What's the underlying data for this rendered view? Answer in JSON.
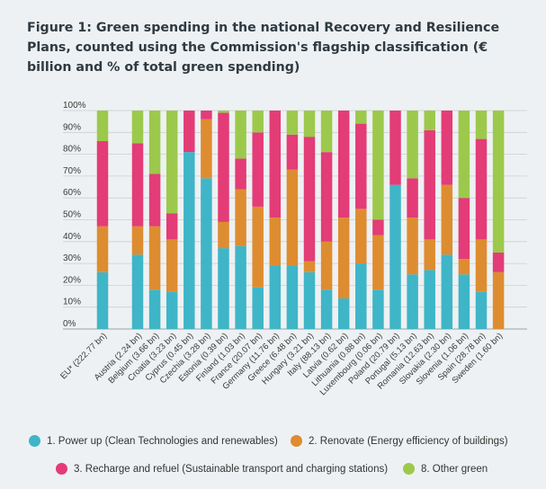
{
  "title": "Figure 1: Green spending in the national Recovery and Resilience Plans, counted using the Commission's flagship classification (€ billion and % of total green spending)",
  "colors": {
    "power_up": "#3fb5c8",
    "renovate": "#de8c30",
    "recharge": "#e33c77",
    "other_green": "#9cc94b"
  },
  "legend": [
    {
      "label": "1. Power up (Clean Technologies and renewables)"
    },
    {
      "label": "2. Renovate (Energy efficiency of buildings)"
    },
    {
      "label": "3. Recharge and refuel (Sustainable transport and charging stations)"
    },
    {
      "label": "8. Other green"
    }
  ],
  "chart_data": {
    "type": "bar",
    "stacked": true,
    "title": "Figure 1: Green spending in the national Recovery and Resilience Plans, counted using the Commission's flagship classification (€ billion and % of total green spending)",
    "xlabel": "",
    "ylabel": "",
    "ylim": [
      0,
      100
    ],
    "yticks": [
      "0%",
      "10%",
      "20%",
      "30%",
      "40%",
      "50%",
      "60%",
      "70%",
      "80%",
      "90%",
      "100%"
    ],
    "grid": true,
    "legend_position": "bottom",
    "categories": [
      "EU* (222.77 bn)",
      "Austria (2.24 bn)",
      "Belgium (3.66 bn)",
      "Croatia (3.23 bn)",
      "Cyprus (0.45 bn)",
      "Czechia (3.28 bn)",
      "Estonia (0.39 bn)",
      "Finland (1.03 bn)",
      "France (20.07 bn)",
      "Germany (11.76 bn)",
      "Greece (6.48 bn)",
      "Hungary (3.21 bn)",
      "Italy (88.13 bn)",
      "Latvia (0.62 bn)",
      "Lithuania (0.88 bn)",
      "Luxembourg (0.06 bn)",
      "Poland (20.79 bn)",
      "Portugal (5.13 bn)",
      "Romania (12.63 bn)",
      "Slovakia (2.30 bn)",
      "Slovenia (1.06 bn)",
      "Spain (28.78 bn)",
      "Sweden (1.60 bn)"
    ],
    "series": [
      {
        "name": "1. Power up (Clean Technologies and renewables)",
        "values": [
          26,
          34,
          18,
          17,
          81,
          69,
          37,
          38,
          19,
          29,
          29,
          26,
          18,
          14,
          30,
          18,
          66,
          25,
          27,
          34,
          25,
          17,
          0
        ]
      },
      {
        "name": "2. Renovate (Energy efficiency of buildings)",
        "values": [
          21,
          13,
          29,
          24,
          0,
          27,
          12,
          26,
          37,
          22,
          44,
          5,
          22,
          37,
          25,
          25,
          0,
          26,
          14,
          32,
          7,
          24,
          26
        ]
      },
      {
        "name": "3. Recharge and refuel (Sustainable transport and charging stations)",
        "values": [
          39,
          38,
          24,
          12,
          19,
          4,
          50,
          14,
          34,
          49,
          16,
          57,
          41,
          49,
          39,
          7,
          34,
          18,
          50,
          34,
          28,
          46,
          9
        ]
      },
      {
        "name": "8. Other green",
        "values": [
          14,
          15,
          29,
          47,
          0,
          0,
          1,
          22,
          10,
          0,
          11,
          12,
          19,
          0,
          6,
          50,
          0,
          31,
          9,
          0,
          40,
          13,
          65
        ]
      }
    ]
  }
}
